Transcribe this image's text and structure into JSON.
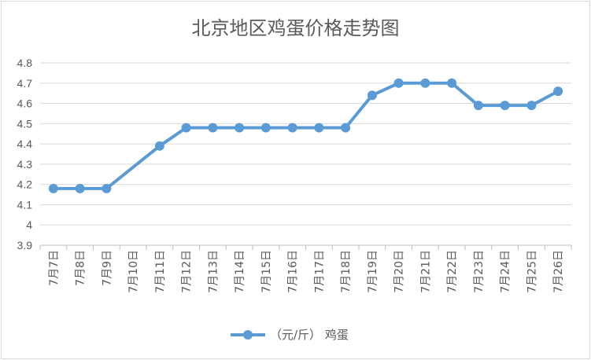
{
  "chart_data": {
    "type": "line",
    "title": "北京地区鸡蛋价格走势图",
    "categories": [
      "7月7日",
      "7月8日",
      "7月9日",
      "7月10日",
      "7月11日",
      "7月12日",
      "7月13日",
      "7月14日",
      "7月15日",
      "7月16日",
      "7月17日",
      "7月18日",
      "7月19日",
      "7月20日",
      "7月21日",
      "7月22日",
      "7月23日",
      "7月24日",
      "7月25日",
      "7月26日"
    ],
    "series": [
      {
        "name": "（元/斤） 鸡蛋",
        "values": [
          4.18,
          4.18,
          4.18,
          null,
          4.39,
          4.48,
          4.48,
          4.48,
          4.48,
          4.48,
          4.48,
          4.48,
          4.64,
          4.7,
          4.7,
          4.7,
          4.59,
          4.59,
          4.59,
          4.66
        ],
        "color": "#5b9bd5"
      }
    ],
    "ylim": [
      3.9,
      4.8
    ],
    "yticks": [
      "3.9",
      "4",
      "4.1",
      "4.2",
      "4.3",
      "4.4",
      "4.5",
      "4.6",
      "4.7",
      "4.8"
    ],
    "xlabel": "",
    "ylabel": "",
    "grid": true,
    "legend_position": "bottom",
    "gridline_color": "#d9d9d9"
  }
}
